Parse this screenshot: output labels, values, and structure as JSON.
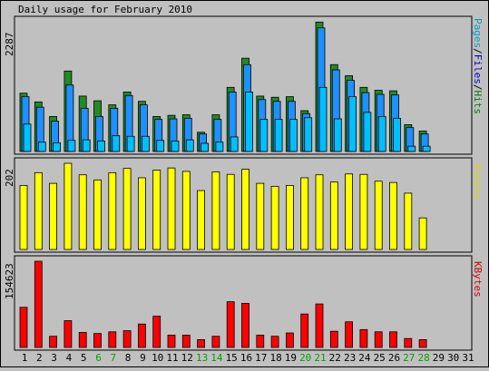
{
  "chart_data": [
    {
      "type": "bar",
      "title": "Daily usage for February 2010",
      "ymax_label": "2287",
      "ylim": [
        0,
        2287
      ],
      "legend": [
        {
          "text": "Pages",
          "color": "#00a0c8"
        },
        {
          "text": "/",
          "color": "#000000"
        },
        {
          "text": "Files",
          "color": "#0000c8"
        },
        {
          "text": "/",
          "color": "#000000"
        },
        {
          "text": "Hits",
          "color": "#008000"
        }
      ],
      "categories": [
        "1",
        "2",
        "3",
        "4",
        "5",
        "6",
        "7",
        "8",
        "9",
        "10",
        "11",
        "12",
        "13",
        "14",
        "15",
        "16",
        "17",
        "18",
        "19",
        "20",
        "21",
        "22",
        "23",
        "24",
        "25",
        "26",
        "27",
        "28",
        "29",
        "30",
        "31"
      ],
      "series": [
        {
          "name": "Hits",
          "color": "#228b22",
          "values": [
            1000,
            850,
            600,
            1380,
            950,
            870,
            800,
            1020,
            860,
            600,
            620,
            630,
            330,
            630,
            1100,
            1600,
            950,
            930,
            940,
            700,
            2220,
            1490,
            1300,
            1100,
            1050,
            1040,
            460,
            350,
            null,
            null,
            null
          ]
        },
        {
          "name": "Files",
          "color": "#1e90ff",
          "values": [
            940,
            760,
            520,
            1140,
            740,
            600,
            740,
            960,
            800,
            550,
            560,
            570,
            300,
            550,
            1020,
            1490,
            890,
            860,
            860,
            650,
            2120,
            1400,
            1220,
            1010,
            980,
            970,
            410,
            300,
            null,
            null,
            null
          ]
        },
        {
          "name": "Pages",
          "color": "#00bfff",
          "values": [
            470,
            160,
            150,
            190,
            200,
            180,
            270,
            260,
            260,
            190,
            180,
            200,
            140,
            160,
            250,
            1020,
            550,
            550,
            550,
            580,
            1100,
            560,
            940,
            670,
            600,
            570,
            90,
            90,
            null,
            null,
            null
          ]
        }
      ]
    },
    {
      "type": "bar",
      "ymax_label": "202",
      "ylim": [
        0,
        202
      ],
      "legend": [
        {
          "text": "Visits",
          "color": "#d8d800"
        }
      ],
      "categories": [
        "1",
        "2",
        "3",
        "4",
        "5",
        "6",
        "7",
        "8",
        "9",
        "10",
        "11",
        "12",
        "13",
        "14",
        "15",
        "16",
        "17",
        "18",
        "19",
        "20",
        "21",
        "22",
        "23",
        "24",
        "25",
        "26",
        "27",
        "28",
        "29",
        "30",
        "31"
      ],
      "series": [
        {
          "name": "Visits",
          "color": "#ffff00",
          "values": [
            150,
            180,
            155,
            202,
            175,
            163,
            180,
            190,
            168,
            186,
            191,
            183,
            138,
            182,
            176,
            188,
            155,
            148,
            150,
            168,
            175,
            158,
            177,
            176,
            160,
            157,
            132,
            74,
            null,
            null,
            null
          ]
        }
      ]
    },
    {
      "type": "bar",
      "ymax_label": "154623",
      "ylim": [
        0,
        154623
      ],
      "legend": [
        {
          "text": "KBytes",
          "color": "#d80000"
        }
      ],
      "categories": [
        "1",
        "2",
        "3",
        "4",
        "5",
        "6",
        "7",
        "8",
        "9",
        "10",
        "11",
        "12",
        "13",
        "14",
        "15",
        "16",
        "17",
        "18",
        "19",
        "20",
        "21",
        "22",
        "23",
        "24",
        "25",
        "26",
        "27",
        "28",
        "29",
        "30",
        "31"
      ],
      "series": [
        {
          "name": "KBytes",
          "color": "#ff0000",
          "values": [
            72000,
            154623,
            20000,
            48000,
            27000,
            25000,
            28000,
            30000,
            42000,
            56000,
            22000,
            22000,
            14000,
            20000,
            82000,
            79000,
            22000,
            20000,
            26000,
            60000,
            78000,
            29000,
            46000,
            32000,
            28000,
            28000,
            16000,
            14000,
            null,
            null,
            null
          ]
        }
      ]
    }
  ],
  "x_axis": {
    "days": [
      "1",
      "2",
      "3",
      "4",
      "5",
      "6",
      "7",
      "8",
      "9",
      "10",
      "11",
      "12",
      "13",
      "14",
      "15",
      "16",
      "17",
      "18",
      "19",
      "20",
      "21",
      "22",
      "23",
      "24",
      "25",
      "26",
      "27",
      "28",
      "29",
      "30",
      "31"
    ],
    "weekend_days": [
      "6",
      "7",
      "13",
      "14",
      "20",
      "21",
      "27",
      "28"
    ],
    "weekday_color": "#000000",
    "weekend_color": "#00a000"
  }
}
